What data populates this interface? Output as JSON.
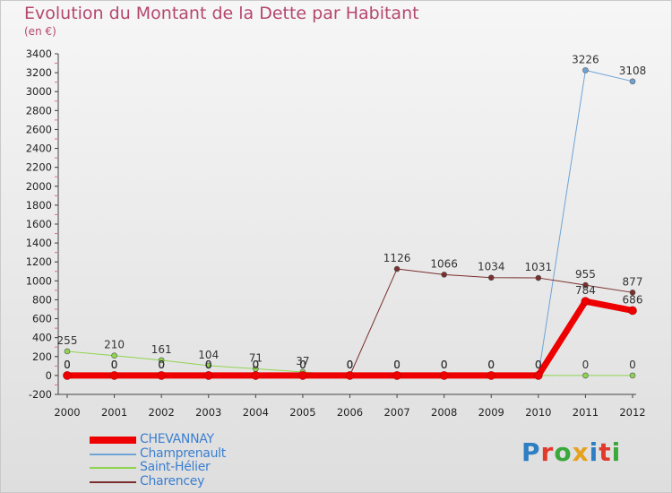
{
  "title": "Evolution du Montant de la Dette par Habitant",
  "subtitle": "(en €)",
  "logo": {
    "text": "Proxiti",
    "letter_colors": [
      "#2e7ec3",
      "#e03a2c",
      "#3aa83b",
      "#e6a21e",
      "#2e7ec3",
      "#e03a2c",
      "#3aa83b"
    ]
  },
  "chart_data": {
    "type": "line",
    "title": "Evolution du Montant de la Dette par Habitant",
    "ylabel": "(en €)",
    "x": [
      "2000",
      "2001",
      "2002",
      "2003",
      "2004",
      "2005",
      "2006",
      "2007",
      "2008",
      "2009",
      "2010",
      "2011",
      "2012"
    ],
    "ylim": [
      -200,
      3400
    ],
    "yticks": [
      -200,
      0,
      200,
      400,
      600,
      800,
      1000,
      1200,
      1400,
      1600,
      1800,
      2000,
      2200,
      2400,
      2600,
      2800,
      3000,
      3200,
      3400
    ],
    "grid": false,
    "legend_position": "bottom-left",
    "series": [
      {
        "name": "CHEVANNAY",
        "color": "#ee0000",
        "line_width": 7,
        "marker": true,
        "values": [
          0,
          0,
          0,
          0,
          0,
          0,
          0,
          0,
          0,
          0,
          0,
          784,
          686
        ],
        "labels": [
          "0",
          "0",
          "0",
          "0",
          "0",
          "0",
          "0",
          "0",
          "0",
          "0",
          "0",
          "784",
          "686"
        ]
      },
      {
        "name": "Champrenault",
        "color": "#6ea3d6",
        "line_width": 1,
        "marker": true,
        "values": [
          0,
          0,
          0,
          0,
          0,
          0,
          0,
          0,
          0,
          0,
          0,
          3226,
          3108
        ],
        "labels": [
          "0",
          "0",
          "0",
          "0",
          "0",
          "0",
          "0",
          "0",
          "0",
          "0",
          "0",
          "3226",
          "3108"
        ]
      },
      {
        "name": "Saint-Hélier",
        "color": "#8ed44f",
        "line_width": 1,
        "marker": true,
        "values": [
          255,
          210,
          161,
          104,
          71,
          37,
          0,
          0,
          0,
          0,
          0,
          0,
          0
        ],
        "labels": [
          "255",
          "210",
          "161",
          "104",
          "71",
          "37",
          "0",
          "0",
          "0",
          "0",
          "0",
          "0",
          "0"
        ]
      },
      {
        "name": "Charencey",
        "color": "#7a2e2e",
        "line_width": 1,
        "marker": true,
        "values": [
          0,
          0,
          0,
          0,
          0,
          0,
          0,
          1126,
          1066,
          1034,
          1031,
          955,
          877
        ],
        "labels": [
          "0",
          "0",
          "0",
          "0",
          "0",
          "0",
          "0",
          "1126",
          "1066",
          "1034",
          "1031",
          "955",
          "877"
        ]
      }
    ]
  }
}
